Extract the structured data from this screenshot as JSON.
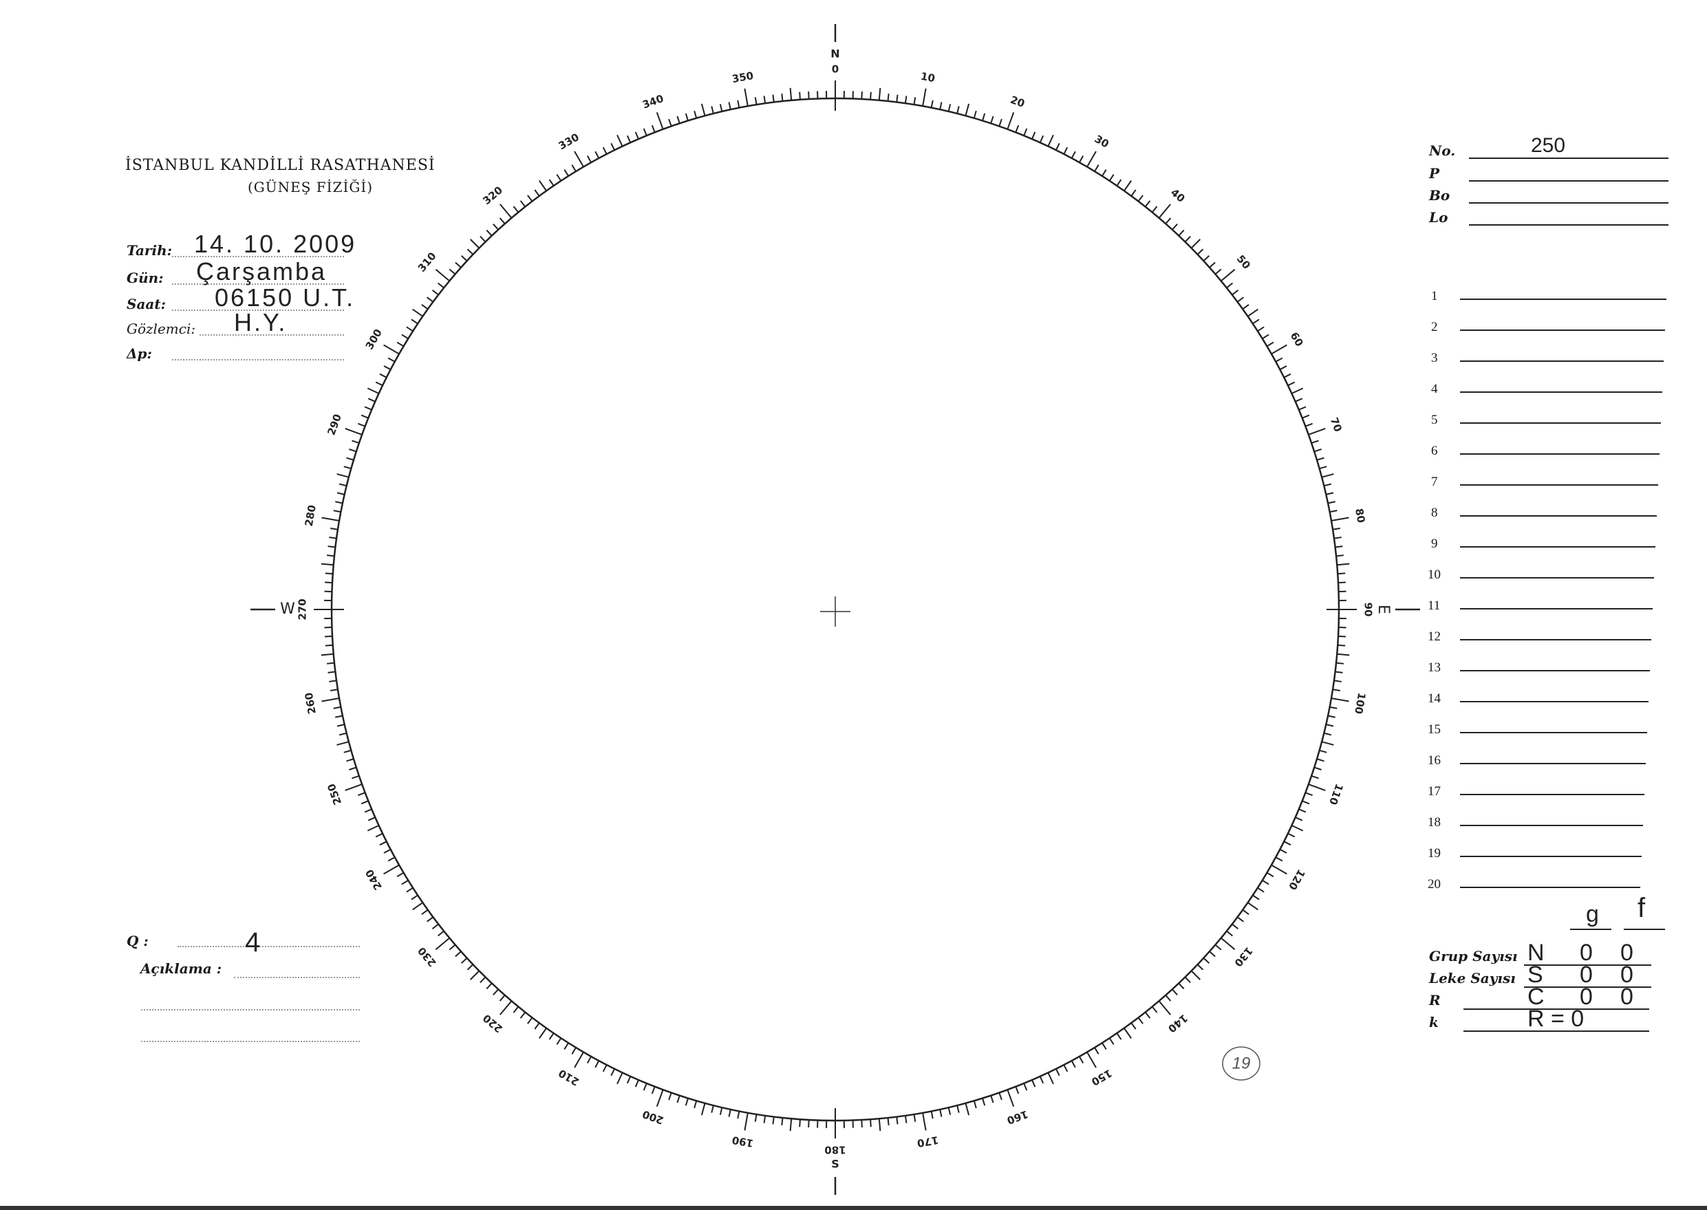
{
  "header": {
    "title": "İSTANBUL KANDİLLİ RASATHANESİ",
    "subtitle": "(GÜNEŞ FİZİĞİ)"
  },
  "fields": [
    {
      "label": "Tarih:",
      "value": "14. 10. 2009"
    },
    {
      "label": "Gün:",
      "value": "Çarşamba"
    },
    {
      "label": "Saat:",
      "value": "06150  U.T."
    },
    {
      "label": "Gözlemci:",
      "value": "H.Y."
    },
    {
      "label": "Δp:",
      "value": ""
    }
  ],
  "q": {
    "label": "Q :",
    "value": "4"
  },
  "aciklama": {
    "label": "Açıklama :",
    "value": ""
  },
  "right": {
    "params": [
      {
        "label": "No.",
        "value": "250"
      },
      {
        "label": "P",
        "value": ""
      },
      {
        "label": "Bo",
        "value": ""
      },
      {
        "label": "Lo",
        "value": ""
      }
    ],
    "rows": [
      "1",
      "2",
      "3",
      "4",
      "5",
      "6",
      "7",
      "8",
      "9",
      "10",
      "11",
      "12",
      "13",
      "14",
      "15",
      "16",
      "17",
      "18",
      "19",
      "20"
    ],
    "columns": [
      "g",
      "f"
    ],
    "counts": [
      {
        "label": "Grup Sayısı",
        "letter": "N",
        "g": "0",
        "f": "0"
      },
      {
        "label": "Leke Sayısı",
        "letter": "S",
        "g": "0",
        "f": "0"
      },
      {
        "label": "R",
        "letter": "C",
        "g": "0",
        "f": "0"
      },
      {
        "label": "k",
        "letter": "R = 0",
        "g": "",
        "f": ""
      }
    ]
  },
  "dial": {
    "labels": [
      "0",
      "10",
      "20",
      "30",
      "40",
      "50",
      "60",
      "70",
      "80",
      "90",
      "100",
      "110",
      "120",
      "130",
      "140",
      "150",
      "160",
      "170",
      "180",
      "190",
      "200",
      "210",
      "220",
      "230",
      "240",
      "250",
      "260",
      "270",
      "280",
      "290",
      "300",
      "310",
      "320",
      "330",
      "340",
      "350"
    ],
    "cardinals": {
      "N": "N",
      "E": "E",
      "S": "S",
      "W": "W"
    }
  },
  "stamp": "19"
}
